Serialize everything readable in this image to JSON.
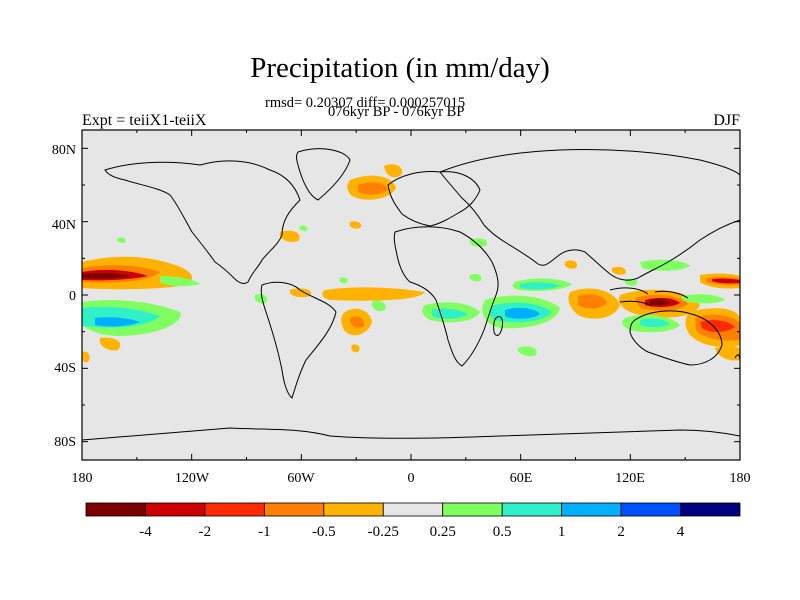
{
  "title": "Precipitation (in mm/day)",
  "stats_line": "rmsd= 0.20307 diff= 0.000257015",
  "period_line": "076kyr BP - 076kyr BP",
  "left_label": "Expt = teiiX1-teiiX",
  "right_label": "DJF",
  "lat_ticks": [
    "80N",
    "40N",
    "0",
    "40S",
    "80S"
  ],
  "lon_ticks": [
    "180",
    "120W",
    "60W",
    "0",
    "60E",
    "120E",
    "180"
  ],
  "colorbar": {
    "labels": [
      "-4",
      "-2",
      "-1",
      "-0.5",
      "-0.25",
      "0.25",
      "0.5",
      "1",
      "2",
      "4"
    ],
    "colors": [
      "#7a0000",
      "#cc0000",
      "#ff2a00",
      "#ff7f00",
      "#ffb300",
      "#e6e6e6",
      "#80ff60",
      "#30f0c8",
      "#00b0ff",
      "#0050ff",
      "#000080"
    ]
  },
  "map_background": "#e6e6e6",
  "chart_data": {
    "type": "heatmap",
    "title": "Precipitation (in mm/day)",
    "x_ticks": [
      "180",
      "120W",
      "60W",
      "0",
      "60E",
      "120E",
      "180"
    ],
    "y_ticks": [
      "80N",
      "40N",
      "0",
      "40S",
      "80S"
    ],
    "xlim": [
      -180,
      180
    ],
    "ylim": [
      -90,
      90
    ],
    "levels": [
      -4,
      -2,
      -1,
      -0.5,
      -0.25,
      0.25,
      0.5,
      1,
      2,
      4
    ],
    "anomaly_regions": [
      {
        "lon": -160,
        "lat": 10,
        "value": -3
      },
      {
        "lon": -160,
        "lat": -12,
        "value": 1.5
      },
      {
        "lon": 160,
        "lat": -20,
        "value": -1.5
      },
      {
        "lon": 130,
        "lat": -5,
        "value": -3
      },
      {
        "lon": 60,
        "lat": -12,
        "value": 1.5
      },
      {
        "lon": -30,
        "lat": 53,
        "value": -1
      },
      {
        "lon": -30,
        "lat": -15,
        "value": -0.5
      },
      {
        "lon": 100,
        "lat": -10,
        "value": -0.5
      }
    ]
  }
}
